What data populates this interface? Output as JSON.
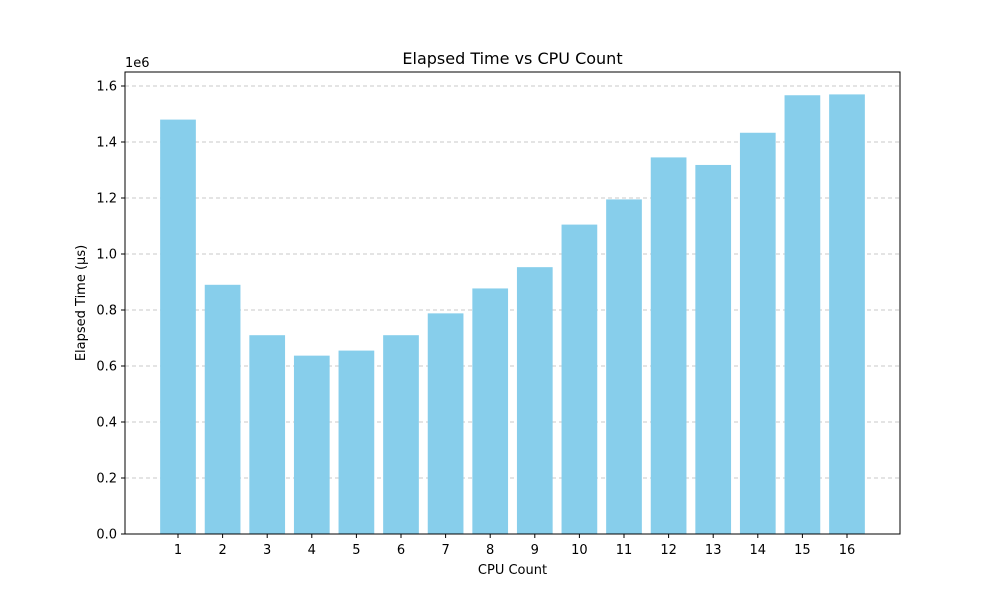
{
  "chart_data": {
    "type": "bar",
    "title": "Elapsed Time vs CPU Count",
    "xlabel": "CPU Count",
    "ylabel": "Elapsed Time (µs)",
    "y_offset_label": "1e6",
    "categories": [
      "1",
      "2",
      "3",
      "4",
      "5",
      "6",
      "7",
      "8",
      "9",
      "10",
      "11",
      "12",
      "13",
      "14",
      "15",
      "16"
    ],
    "values": [
      1480000,
      890000,
      710000,
      637000,
      655000,
      710000,
      788000,
      877000,
      953000,
      1105000,
      1195000,
      1345000,
      1318000,
      1433000,
      1567000,
      1570000
    ],
    "ylim": [
      0,
      1650000
    ],
    "yticks": [
      0,
      200000,
      400000,
      600000,
      800000,
      1000000,
      1200000,
      1400000,
      1600000
    ],
    "ytick_labels": [
      "0.0",
      "0.2",
      "0.4",
      "0.6",
      "0.8",
      "1.0",
      "1.2",
      "1.4",
      "1.6"
    ],
    "grid": "y-dashed",
    "bar_color": "#87ceeb",
    "grid_color": "#c8c8c8"
  }
}
